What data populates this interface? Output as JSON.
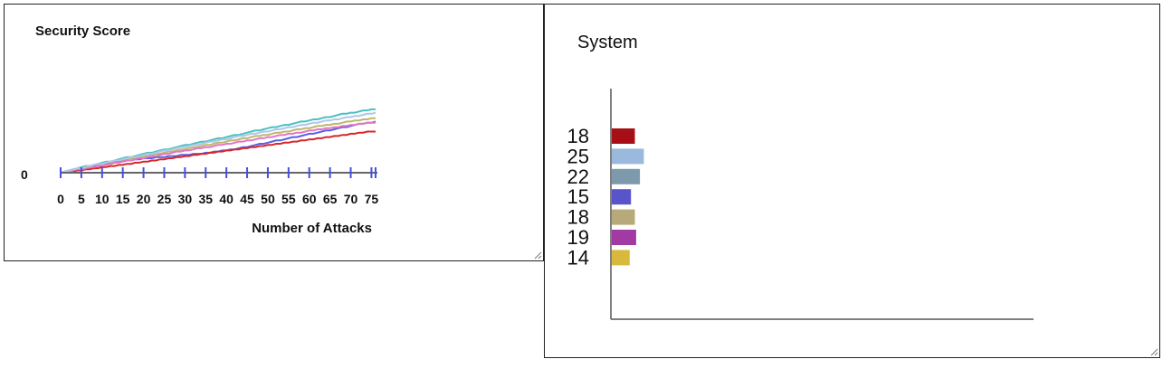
{
  "chart_data": [
    {
      "type": "line",
      "title": "Security Score",
      "xlabel": "Number of Attacks",
      "ylabel": "",
      "y_tick_labels": [
        "0"
      ],
      "x_tick_labels": [
        "0",
        "5",
        "10",
        "15",
        "20",
        "25",
        "30",
        "35",
        "40",
        "45",
        "50",
        "55",
        "60",
        "65",
        "70",
        "75"
      ],
      "xlim": [
        0,
        76
      ],
      "grid": false,
      "series": [
        {
          "color": "#4bc0c0",
          "values": [
            0,
            1,
            2,
            3,
            4,
            5,
            6,
            6,
            7,
            8,
            9,
            10,
            10,
            11,
            12,
            13,
            14,
            14,
            15,
            16,
            17,
            18,
            18,
            19,
            20,
            21,
            21,
            22,
            23,
            24,
            25,
            25,
            26,
            27,
            28,
            28,
            29,
            30,
            31,
            31,
            32,
            33,
            34,
            34,
            35,
            36,
            37,
            38,
            38,
            39,
            40,
            41,
            41,
            42,
            43,
            43,
            44,
            45,
            46,
            46,
            47,
            48,
            48,
            49,
            50,
            50,
            51,
            52,
            53,
            53,
            54,
            54,
            55,
            56,
            56,
            57,
            57
          ]
        },
        {
          "color": "#bdb76b",
          "values": [
            0,
            1,
            2,
            3,
            3,
            4,
            5,
            6,
            6,
            7,
            8,
            9,
            9,
            10,
            11,
            11,
            12,
            13,
            13,
            14,
            15,
            15,
            16,
            17,
            17,
            18,
            19,
            19,
            20,
            21,
            21,
            22,
            23,
            23,
            24,
            25,
            25,
            26,
            27,
            27,
            28,
            29,
            29,
            30,
            31,
            31,
            32,
            33,
            33,
            34,
            34,
            35,
            36,
            36,
            37,
            37,
            38,
            39,
            39,
            40,
            40,
            41,
            42,
            42,
            43,
            43,
            44,
            44,
            45,
            46,
            46,
            47,
            47,
            48,
            48,
            49,
            49
          ]
        },
        {
          "color": "#5a5fe6",
          "values": [
            0,
            1,
            2,
            2,
            3,
            4,
            4,
            5,
            6,
            6,
            7,
            8,
            8,
            9,
            10,
            10,
            11,
            11,
            12,
            12,
            13,
            13,
            13,
            14,
            14,
            14,
            15,
            15,
            15,
            16,
            16,
            16,
            17,
            17,
            17,
            18,
            18,
            19,
            19,
            20,
            20,
            21,
            21,
            22,
            23,
            23,
            24,
            25,
            26,
            26,
            27,
            28,
            29,
            29,
            30,
            31,
            32,
            32,
            33,
            34,
            35,
            35,
            36,
            37,
            38,
            38,
            39,
            40,
            41,
            41,
            42,
            43,
            44,
            44,
            45,
            45,
            46
          ]
        },
        {
          "color": "#d62728",
          "values": [
            0,
            0,
            1,
            1,
            2,
            2,
            3,
            3,
            4,
            4,
            5,
            5,
            6,
            6,
            7,
            7,
            8,
            8,
            9,
            9,
            10,
            10,
            11,
            11,
            12,
            12,
            13,
            13,
            14,
            14,
            15,
            15,
            16,
            16,
            17,
            17,
            18,
            18,
            19,
            19,
            20,
            20,
            21,
            21,
            22,
            22,
            23,
            23,
            24,
            24,
            25,
            25,
            26,
            26,
            27,
            27,
            28,
            28,
            29,
            29,
            30,
            30,
            31,
            31,
            32,
            32,
            33,
            33,
            34,
            34,
            35,
            35,
            36,
            36,
            37,
            37,
            37
          ]
        },
        {
          "color": "#e377c2",
          "values": [
            0,
            1,
            1,
            2,
            3,
            3,
            4,
            5,
            5,
            6,
            7,
            7,
            8,
            9,
            9,
            10,
            11,
            11,
            12,
            13,
            13,
            14,
            15,
            15,
            16,
            17,
            17,
            18,
            19,
            19,
            20,
            20,
            21,
            22,
            22,
            23,
            23,
            24,
            25,
            25,
            26,
            26,
            27,
            28,
            28,
            29,
            29,
            30,
            31,
            31,
            32,
            32,
            33,
            34,
            34,
            35,
            35,
            36,
            36,
            37,
            38,
            38,
            39,
            39,
            40,
            40,
            41,
            41,
            42,
            42,
            43,
            43,
            44,
            44,
            45,
            45,
            45
          ]
        },
        {
          "color": "#aec7e8",
          "values": [
            0,
            1,
            2,
            3,
            4,
            4,
            5,
            6,
            7,
            8,
            8,
            9,
            10,
            11,
            11,
            12,
            13,
            14,
            14,
            15,
            16,
            17,
            17,
            18,
            19,
            20,
            20,
            21,
            22,
            23,
            23,
            24,
            25,
            25,
            26,
            27,
            28,
            28,
            29,
            30,
            30,
            31,
            32,
            33,
            33,
            34,
            35,
            35,
            36,
            37,
            37,
            38,
            39,
            39,
            40,
            41,
            41,
            42,
            43,
            43,
            44,
            45,
            45,
            46,
            47,
            47,
            48,
            48,
            49,
            50,
            50,
            51,
            51,
            52,
            53,
            53,
            54
          ]
        }
      ]
    },
    {
      "type": "bar",
      "orientation": "horizontal",
      "title": "System",
      "xlabel": "",
      "ylabel": "",
      "grid": false,
      "xlim": [
        0,
        330
      ],
      "categories": [
        "18",
        "25",
        "22",
        "15",
        "18",
        "19",
        "14"
      ],
      "values": [
        18,
        25,
        22,
        15,
        18,
        19,
        14
      ],
      "colors": [
        "#a50f15",
        "#9ab9dc",
        "#7d9aad",
        "#5954c8",
        "#b7a97a",
        "#a33aa3",
        "#d9b93c"
      ]
    }
  ]
}
